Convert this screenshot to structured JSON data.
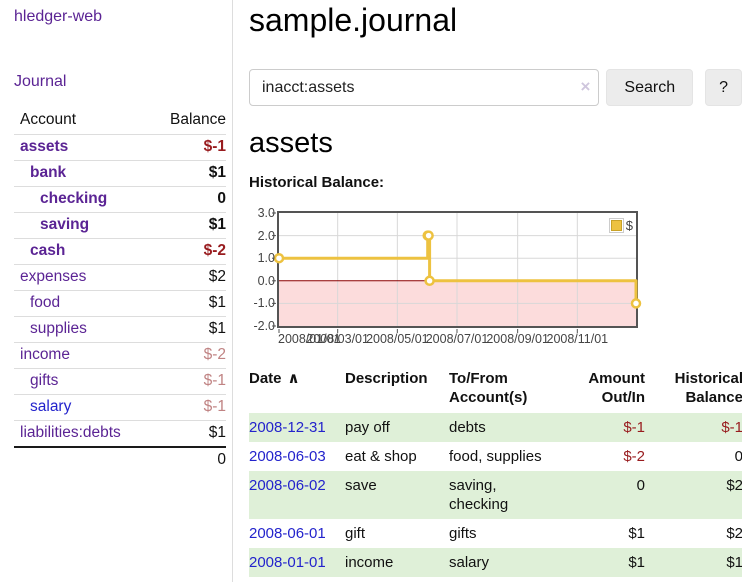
{
  "app": {
    "brand": "hledger-web",
    "nav_journal": "Journal"
  },
  "colors": {
    "link_purple": "#5b2494",
    "link_blue": "#2323cc",
    "neg_strong": "#981b1e",
    "neg_muted": "#c08383",
    "row_highlight": "#dff0d8",
    "chart_line": "#edc240",
    "chart_negative_fill": "#fcdcdc",
    "chart_zero_line": "#8b0000",
    "chart_grid": "#d8d8d8",
    "chart_border": "#545454",
    "button_bg": "#ececec",
    "divider": "#dddddd"
  },
  "sidebar": {
    "headers": [
      "Account",
      "Balance"
    ],
    "rows": [
      {
        "account": "assets",
        "indent": 0,
        "bold": true,
        "link": "purple",
        "balance": "$-1",
        "balance_class": "neg-strong"
      },
      {
        "account": "bank",
        "indent": 1,
        "bold": true,
        "link": "purple",
        "balance": "$1",
        "balance_class": "pos-strong"
      },
      {
        "account": "checking",
        "indent": 2,
        "bold": true,
        "link": "purple",
        "balance": "0",
        "balance_class": "pos-strong"
      },
      {
        "account": "saving",
        "indent": 2,
        "bold": true,
        "link": "purple",
        "balance": "$1",
        "balance_class": "pos-strong"
      },
      {
        "account": "cash",
        "indent": 1,
        "bold": true,
        "link": "purple",
        "balance": "$-2",
        "balance_class": "neg-strong"
      },
      {
        "account": "expenses",
        "indent": 0,
        "bold": false,
        "link": "purple",
        "balance": "$2",
        "balance_class": "pos"
      },
      {
        "account": "food",
        "indent": 1,
        "bold": false,
        "link": "purple",
        "balance": "$1",
        "balance_class": "pos"
      },
      {
        "account": "supplies",
        "indent": 1,
        "bold": false,
        "link": "purple",
        "balance": "$1",
        "balance_class": "pos"
      },
      {
        "account": "income",
        "indent": 0,
        "bold": false,
        "link": "purple",
        "balance": "$-2",
        "balance_class": "neg-muted"
      },
      {
        "account": "gifts",
        "indent": 1,
        "bold": false,
        "link": "purple",
        "balance": "$-1",
        "balance_class": "neg-muted"
      },
      {
        "account": "salary",
        "indent": 1,
        "bold": false,
        "link": "blue",
        "balance": "$-1",
        "balance_class": "neg-muted"
      },
      {
        "account": "liabilities:debts",
        "indent": 0,
        "bold": false,
        "link": "purple",
        "balance": "$1",
        "balance_class": "pos"
      }
    ],
    "total": "0"
  },
  "header": {
    "title": "sample.journal"
  },
  "search": {
    "value": "inacct:assets",
    "clear_icon": "×",
    "button_label": "Search",
    "help_label": "?"
  },
  "account_page": {
    "title": "assets"
  },
  "chart_data": {
    "type": "line",
    "title": "Historical Balance:",
    "legend": [
      {
        "label": "$",
        "color": "#edc240",
        "position": "top-right"
      }
    ],
    "series": [
      {
        "name": "$",
        "color": "#edc240",
        "steps": true,
        "points": [
          {
            "x": "2008-01-01",
            "y": 1
          },
          {
            "x": "2008-06-01",
            "y": 2
          },
          {
            "x": "2008-06-02",
            "y": 2
          },
          {
            "x": "2008-06-03",
            "y": 0
          },
          {
            "x": "2008-12-31",
            "y": -1
          }
        ]
      }
    ],
    "x_range": [
      "2008-01-01",
      "2008-12-31"
    ],
    "ylim": [
      -2,
      3
    ],
    "y_ticks": [
      {
        "value": 3,
        "label": "3.0"
      },
      {
        "value": 2,
        "label": "2.0"
      },
      {
        "value": 1,
        "label": "1.0"
      },
      {
        "value": 0,
        "label": "0.0"
      },
      {
        "value": -1,
        "label": "-1.0"
      },
      {
        "value": -2,
        "label": "-2.0"
      }
    ],
    "x_ticks": [
      {
        "date": "2008-01-01",
        "label": "2008/01/01"
      },
      {
        "date": "2008-03-01",
        "label": "2008/03/01"
      },
      {
        "date": "2008-05-01",
        "label": "2008/05/01"
      },
      {
        "date": "2008-07-01",
        "label": "2008/07/01"
      },
      {
        "date": "2008-09-01",
        "label": "2008/09/01"
      },
      {
        "date": "2008-11-01",
        "label": "2008/11/01"
      }
    ],
    "grid": true,
    "negative_region": true
  },
  "register": {
    "sort_icon": "∧",
    "headers": {
      "date": "Date",
      "description": "Description",
      "accounts": "To/From\nAccount(s)",
      "amount": "Amount\nOut/In",
      "balance": "Historical\nBalance"
    },
    "rows": [
      {
        "date": "2008-12-31",
        "description": "pay off",
        "accounts": "debts",
        "amount": "$-1",
        "amount_neg": true,
        "balance": "$-1",
        "balance_neg": true,
        "highlight": true
      },
      {
        "date": "2008-06-03",
        "description": "eat & shop",
        "accounts": "food, supplies",
        "amount": "$-2",
        "amount_neg": true,
        "balance": "0",
        "balance_neg": false,
        "highlight": false
      },
      {
        "date": "2008-06-02",
        "description": "save",
        "accounts": "saving,\nchecking",
        "amount": "0",
        "amount_neg": false,
        "balance": "$2",
        "balance_neg": false,
        "highlight": true
      },
      {
        "date": "2008-06-01",
        "description": "gift",
        "accounts": "gifts",
        "amount": "$1",
        "amount_neg": false,
        "balance": "$2",
        "balance_neg": false,
        "highlight": false
      },
      {
        "date": "2008-01-01",
        "description": "income",
        "accounts": "salary",
        "amount": "$1",
        "amount_neg": false,
        "balance": "$1",
        "balance_neg": false,
        "highlight": true
      }
    ]
  }
}
